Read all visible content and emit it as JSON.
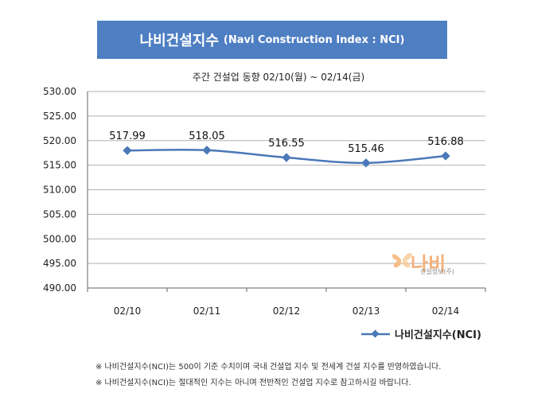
{
  "header": {
    "title_ko": "나비건설지수",
    "title_en": "(Navi Construction Index : NCI)",
    "subtitle": "주간 건설업 동향 02/10(월) ~ 02/14(금)"
  },
  "legend": {
    "label": "나비건설지수(NCI)"
  },
  "notes": [
    "※ 나비건설지수(NCI)는 500이 기준 수치이며 국내 건설업 지수 및 전세계 건설 지수를 반영하였습니다.",
    "※ 나비건설지수(NCI)는 절대적인 지수는 아니며 전반적인 건설업 지수로 참고하시길 바랍니다."
  ],
  "logo": {
    "text": "나비",
    "sub": "건설정보(주)"
  },
  "colors": {
    "banner": "#4f7fc3",
    "series": "#4a78b8",
    "axis": "#666666",
    "gridline": "#b0b0b0"
  },
  "chart_data": {
    "type": "line",
    "categories": [
      "02/10",
      "02/11",
      "02/12",
      "02/13",
      "02/14"
    ],
    "series": [
      {
        "name": "나비건설지수(NCI)",
        "values": [
          517.99,
          518.05,
          516.55,
          515.46,
          516.88
        ]
      }
    ],
    "data_labels": [
      "517.99",
      "518.05",
      "516.55",
      "515.46",
      "516.88"
    ],
    "ylim": [
      490,
      530
    ],
    "yticks": [
      "490.00",
      "495.00",
      "500.00",
      "505.00",
      "510.00",
      "515.00",
      "520.00",
      "525.00",
      "530.00"
    ],
    "grid": true,
    "legend_position": "bottom-right",
    "smooth": true,
    "marker": "diamond"
  }
}
